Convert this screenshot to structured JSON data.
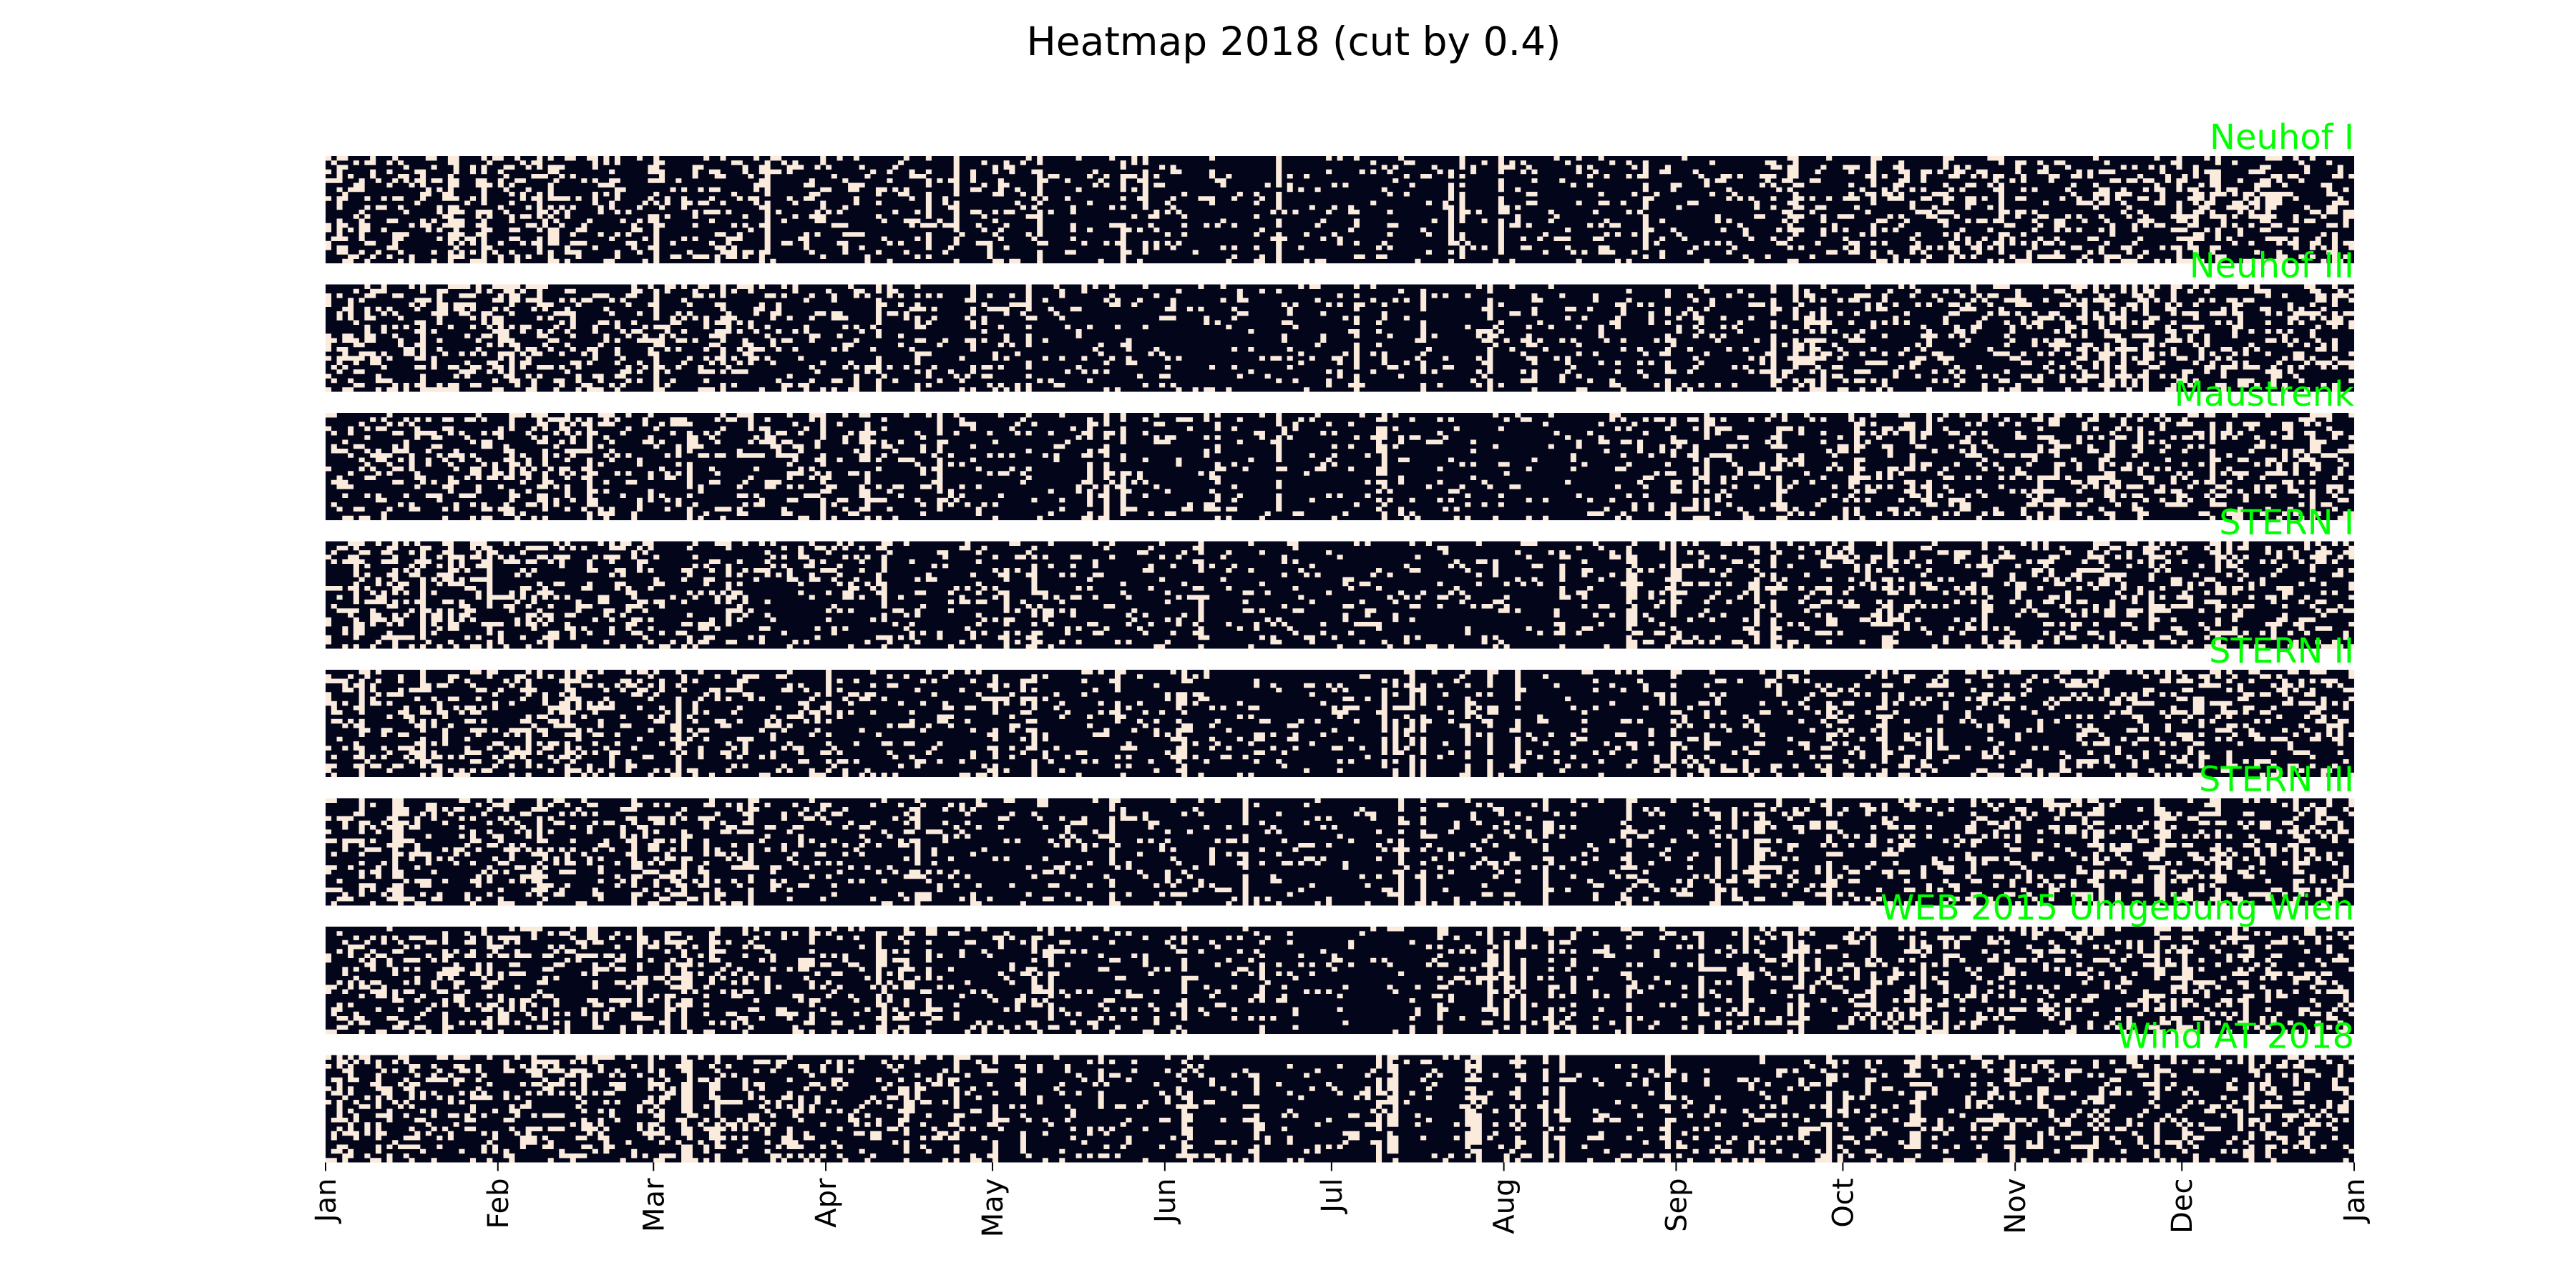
{
  "chart_data": {
    "type": "heatmap",
    "title": "Heatmap 2018 (cut by 0.4)",
    "threshold": 0.4,
    "x_axis": {
      "range": [
        "2018-01-01",
        "2019-01-01"
      ],
      "tick_labels": [
        "Jan",
        "Feb",
        "Mar",
        "Apr",
        "May",
        "Jun",
        "Jul",
        "Aug",
        "Sep",
        "Oct",
        "Nov",
        "Dec",
        "Jan"
      ],
      "tick_dates": [
        "2018-01-01",
        "2018-02-01",
        "2018-03-01",
        "2018-04-01",
        "2018-05-01",
        "2018-06-01",
        "2018-07-01",
        "2018-08-01",
        "2018-09-01",
        "2018-10-01",
        "2018-11-01",
        "2018-12-01",
        "2019-01-01"
      ]
    },
    "y_axis": {
      "range": [
        0,
        24
      ],
      "tick_labels": []
    },
    "colors": {
      "above_cut": "#03051a",
      "below_cut": "#faebdd",
      "panel_label": "#00ff00"
    },
    "grid": false,
    "legend": "none",
    "panels": [
      {
        "name": "Neuhof I"
      },
      {
        "name": "Neuhof III"
      },
      {
        "name": "Maustrenk"
      },
      {
        "name": "STERN I"
      },
      {
        "name": "STERN II"
      },
      {
        "name": "STERN III"
      },
      {
        "name": "WEB 2015 Umgebung Wien"
      },
      {
        "name": "Wind AT 2018"
      }
    ]
  }
}
